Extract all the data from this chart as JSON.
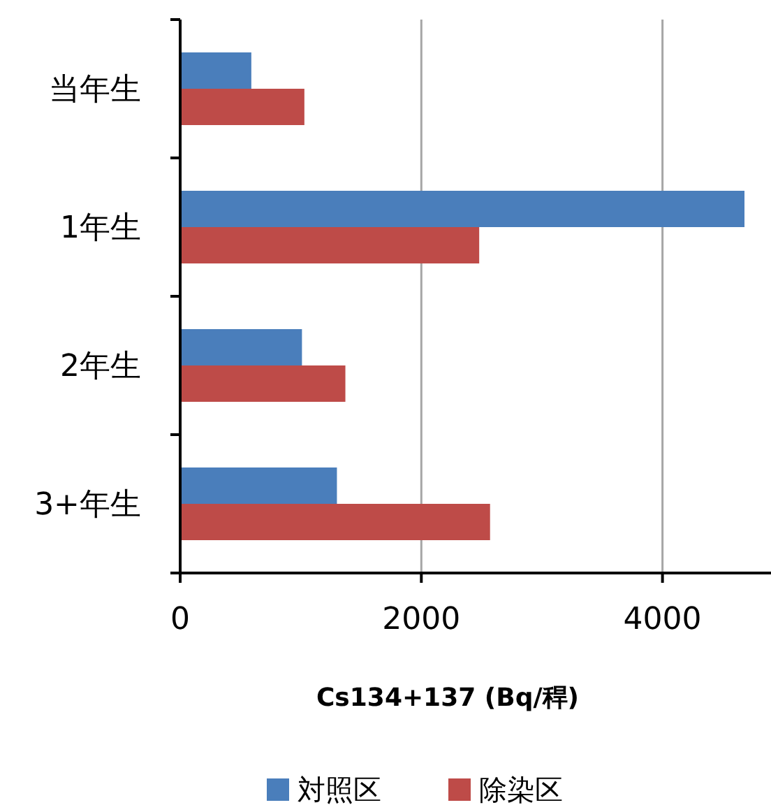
{
  "chart_data": {
    "type": "bar",
    "orientation": "horizontal",
    "xlabel": "Cs134+137 (Bq/稈)",
    "categories": [
      "当年生",
      "1年生",
      "2年生",
      "3+年生"
    ],
    "series": [
      {
        "name": "対照区",
        "color": "#4a7ebb",
        "values": [
          590,
          4680,
          1010,
          1300
        ]
      },
      {
        "name": "除染区",
        "color": "#be4b48",
        "values": [
          1030,
          2480,
          1370,
          2570
        ]
      }
    ],
    "xlim": [
      0,
      4900
    ],
    "xticks": [
      0,
      2000,
      4000
    ],
    "grid": "x",
    "legend": "bottom"
  }
}
